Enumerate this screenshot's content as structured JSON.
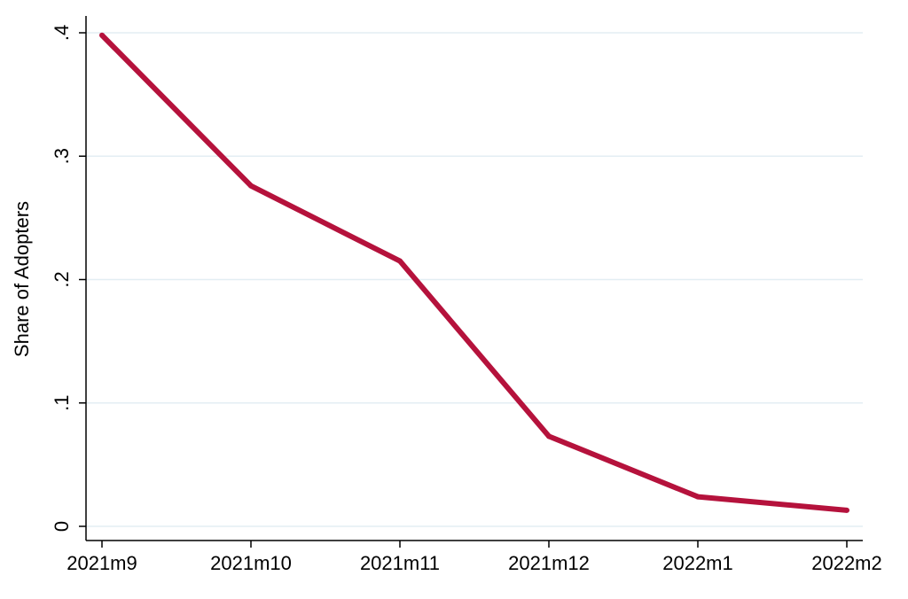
{
  "chart_data": {
    "type": "line",
    "title": "",
    "xlabel": "",
    "ylabel": "Share of Adopters",
    "categories": [
      "2021m9",
      "2021m10",
      "2021m11",
      "2021m12",
      "2022m1",
      "2022m2"
    ],
    "series": [
      {
        "values": [
          0.398,
          0.276,
          0.215,
          0.073,
          0.024,
          0.013
        ]
      }
    ],
    "ylim": [
      0,
      0.4
    ],
    "yticks": [
      0,
      0.1,
      0.2,
      0.3,
      0.4
    ],
    "ytick_labels": [
      "0",
      ".1",
      ".2",
      ".3",
      ".4"
    ],
    "grid": true,
    "legend": "none",
    "colors": {
      "line": "#b5123c",
      "grid": "#e3eef3",
      "axis": "#000000"
    }
  }
}
